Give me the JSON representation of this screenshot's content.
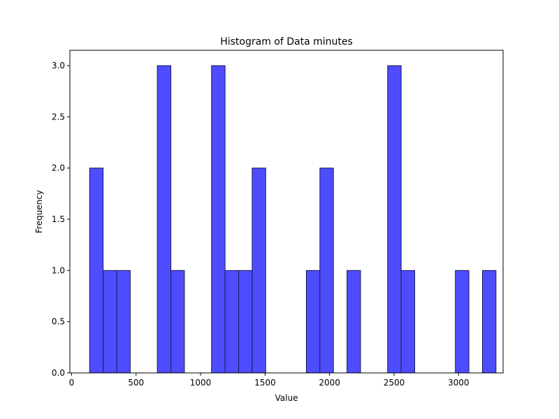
{
  "chart_data": {
    "type": "bar",
    "title": "Histogram of Data minutes",
    "xlabel": "Value",
    "ylabel": "Frequency",
    "xlim": [
      -13,
      3345
    ],
    "ylim": [
      0,
      3.15
    ],
    "x_ticks": [
      0,
      500,
      1000,
      1500,
      2000,
      2500,
      3000
    ],
    "y_ticks": [
      0.0,
      0.5,
      1.0,
      1.5,
      2.0,
      2.5,
      3.0
    ],
    "bin_width": 104.9,
    "bins": [
      {
        "start": 140,
        "count": 2
      },
      {
        "start": 245,
        "count": 1
      },
      {
        "start": 350,
        "count": 1
      },
      {
        "start": 665,
        "count": 3
      },
      {
        "start": 770,
        "count": 1
      },
      {
        "start": 1085,
        "count": 3
      },
      {
        "start": 1190,
        "count": 1
      },
      {
        "start": 1295,
        "count": 1
      },
      {
        "start": 1400,
        "count": 2
      },
      {
        "start": 1820,
        "count": 1
      },
      {
        "start": 1925,
        "count": 2
      },
      {
        "start": 2135,
        "count": 1
      },
      {
        "start": 2450,
        "count": 3
      },
      {
        "start": 2555,
        "count": 1
      },
      {
        "start": 2975,
        "count": 1
      },
      {
        "start": 3185,
        "count": 1
      }
    ],
    "bar_color": "#4d4dff",
    "edge_color": "#1a1a4d",
    "grid": false
  }
}
